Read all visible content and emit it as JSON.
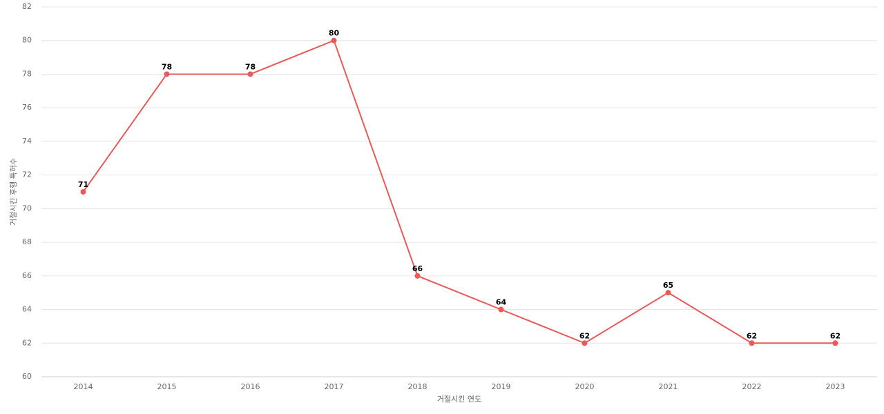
{
  "chart_data": {
    "type": "line",
    "x_label": "거절시킨 연도",
    "y_label": "거절시킨 후행 특허수",
    "categories": [
      "2014",
      "2015",
      "2016",
      "2017",
      "2018",
      "2019",
      "2020",
      "2021",
      "2022",
      "2023"
    ],
    "values": [
      71,
      78,
      78,
      80,
      66,
      64,
      62,
      65,
      62,
      62
    ],
    "color": "#e85a5a",
    "ylim": [
      60,
      82
    ],
    "yticks": [
      60,
      62,
      64,
      66,
      68,
      70,
      72,
      74,
      76,
      78,
      80,
      82
    ],
    "grid": true,
    "data_labels": true
  }
}
